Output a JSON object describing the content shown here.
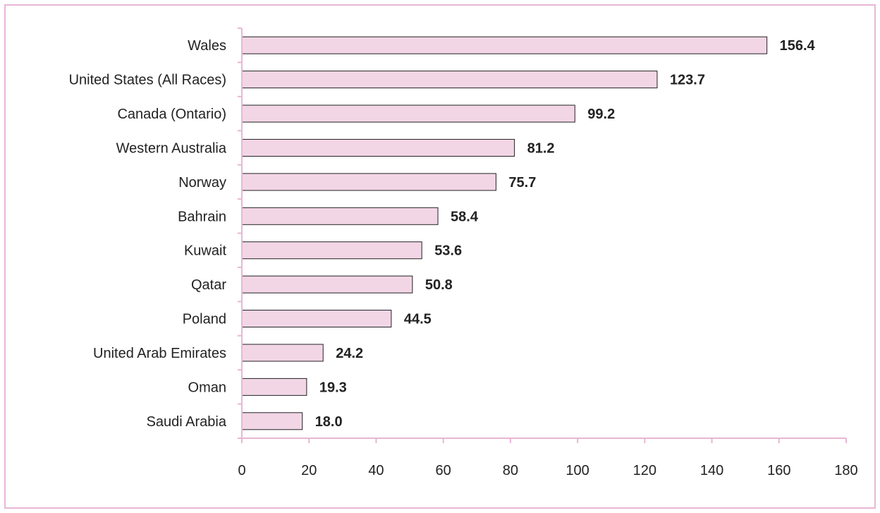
{
  "chart_data": {
    "type": "bar",
    "orientation": "horizontal",
    "categories": [
      "Wales",
      "United States (All Races)",
      "Canada (Ontario)",
      "Western Australia",
      "Norway",
      "Bahrain",
      "Kuwait",
      "Qatar",
      "Poland",
      "United Arab Emirates",
      "Oman",
      "Saudi Arabia"
    ],
    "values": [
      156.4,
      123.7,
      99.2,
      81.2,
      75.7,
      58.4,
      53.6,
      50.8,
      44.5,
      24.2,
      19.3,
      18.0
    ],
    "value_labels": [
      "156.4",
      "123.7",
      "99.2",
      "81.2",
      "75.7",
      "58.4",
      "53.6",
      "50.8",
      "44.5",
      "24.2",
      "19.3",
      "18.0"
    ],
    "title": "",
    "xlabel": "",
    "ylabel": "",
    "xlim": [
      0,
      180
    ],
    "x_ticks": [
      0,
      20,
      40,
      60,
      80,
      100,
      120,
      140,
      160,
      180
    ],
    "x_tick_labels": [
      "0",
      "20",
      "40",
      "60",
      "80",
      "100",
      "120",
      "140",
      "160",
      "180"
    ],
    "grid": false,
    "legend": "none",
    "colors": {
      "bar_fill": "#f2d6e6",
      "bar_stroke": "#222222",
      "axis": "#e8b6d6",
      "frame": "#e8b6d6"
    }
  }
}
